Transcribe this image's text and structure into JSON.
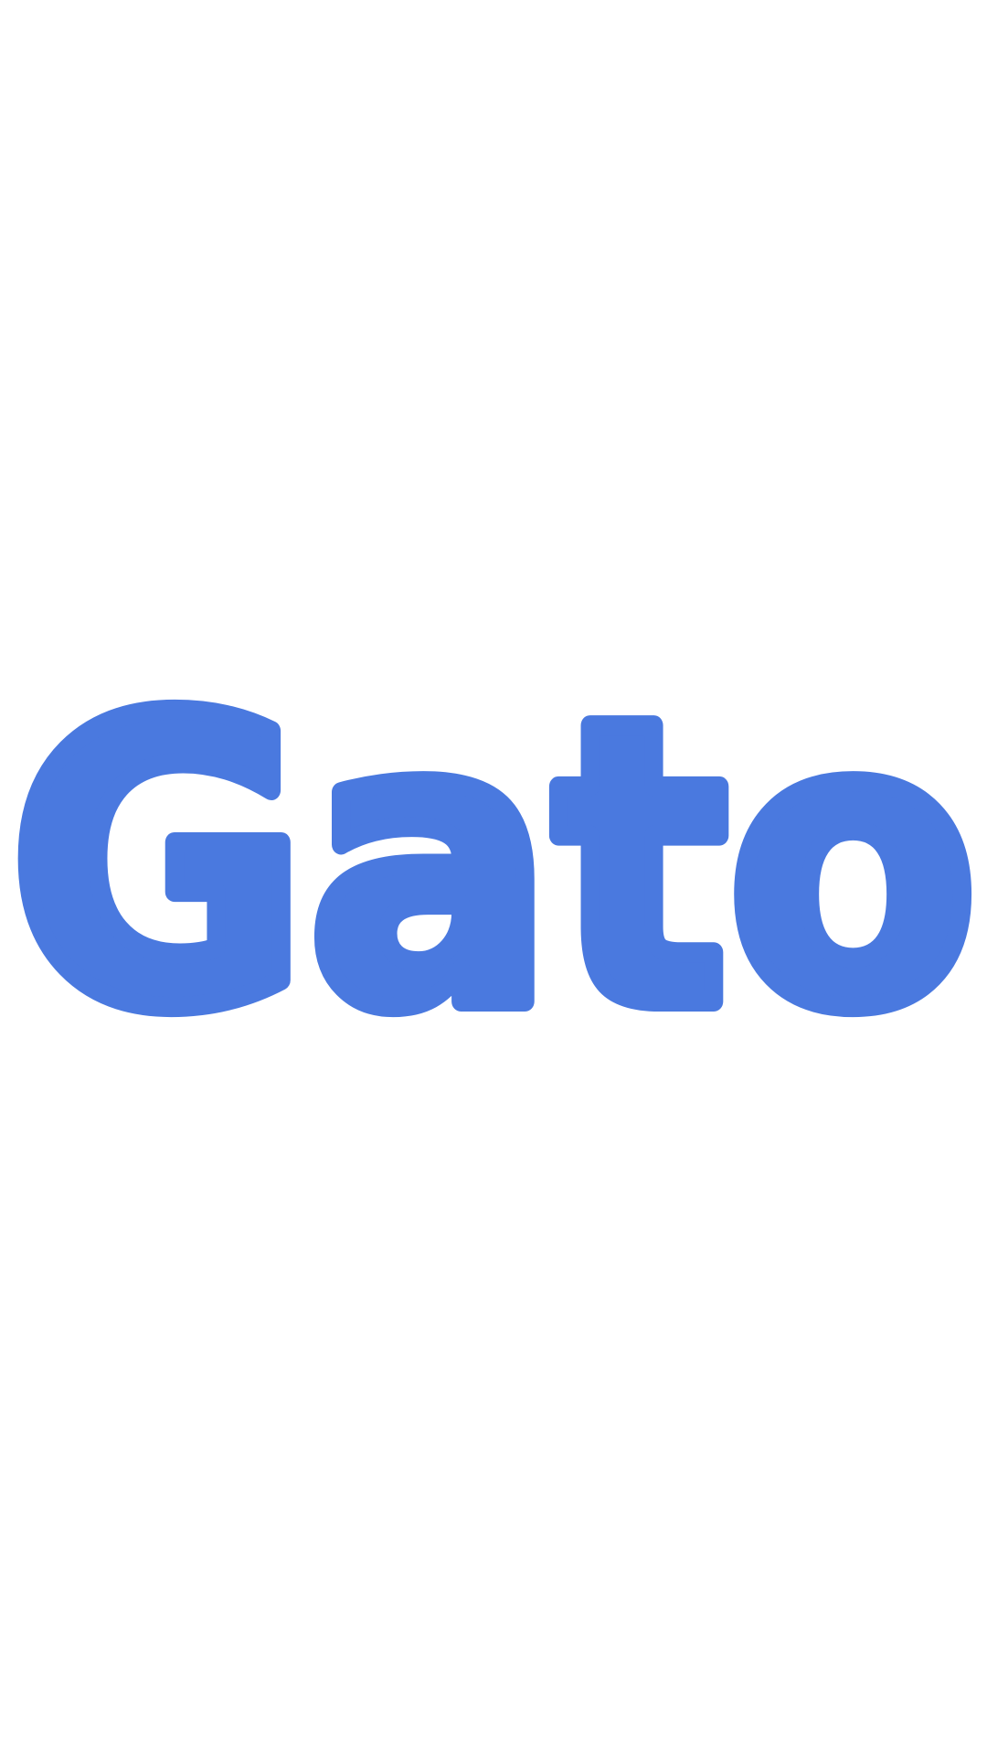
{
  "logo": {
    "word": "Gato",
    "color": "#4A79DF",
    "background": "#FFFFFF"
  }
}
